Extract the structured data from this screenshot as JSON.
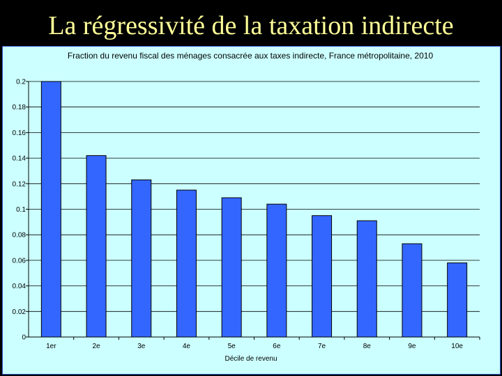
{
  "slide": {
    "title": "La régressivité de la taxation indirecte"
  },
  "colors": {
    "background": "#000000",
    "title": "#ffff99",
    "panel": "#ccffff",
    "bar_fill": "#3366ff",
    "bar_stroke": "#000000",
    "grid": "#000000"
  },
  "chart_data": {
    "type": "bar",
    "title": "Fraction du revenu fiscal des ménages consacrée aux taxes indirecte, France métropolitaine, 2010",
    "xlabel": "Décile de revenu",
    "ylabel": "",
    "categories": [
      "1er",
      "2e",
      "3e",
      "4e",
      "5e",
      "6e",
      "7e",
      "8e",
      "9e",
      "10e"
    ],
    "values": [
      0.2,
      0.142,
      0.123,
      0.115,
      0.109,
      0.104,
      0.095,
      0.091,
      0.073,
      0.058
    ],
    "ylim": [
      0,
      0.2
    ],
    "yticks": [
      "0",
      "0.02",
      "0.04",
      "0.06",
      "0.08",
      "0.1",
      "0.12",
      "0.14",
      "0.16",
      "0.18",
      "0.2"
    ],
    "grid": true,
    "legend": "none"
  }
}
